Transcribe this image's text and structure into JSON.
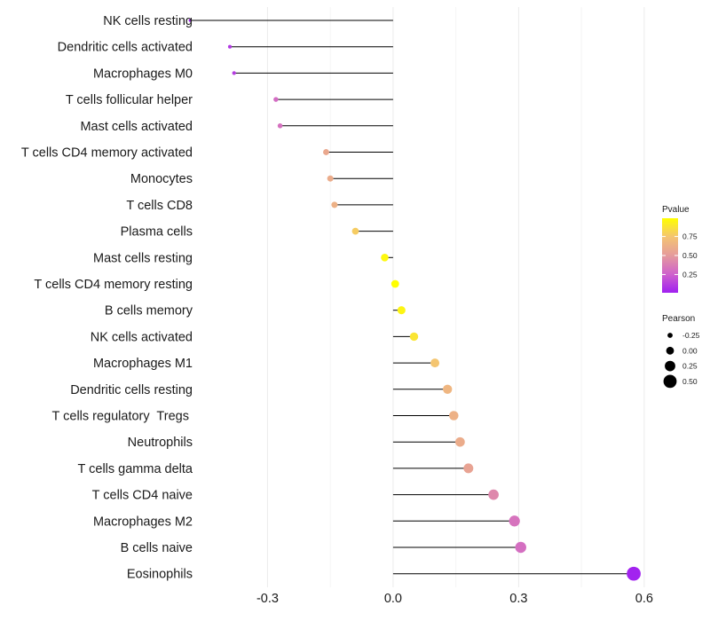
{
  "chart_data": {
    "type": "lollipop",
    "orientation": "horizontal",
    "title": "",
    "xlabel": "",
    "ylabel": "",
    "xlim": [
      -0.46,
      0.63
    ],
    "x_ticks": [
      {
        "value": -0.3,
        "label": "-0.3"
      },
      {
        "value": 0.0,
        "label": "0.0"
      },
      {
        "value": 0.3,
        "label": "0.3"
      },
      {
        "value": 0.6,
        "label": "0.6"
      }
    ],
    "baseline": 0,
    "grid": true,
    "points": [
      {
        "label": "NK cells resting",
        "pearson": -0.485,
        "pvalue": 0.02
      },
      {
        "label": "Dendritic cells activated",
        "pearson": -0.39,
        "pvalue": 0.1
      },
      {
        "label": "Macrophages M0",
        "pearson": -0.38,
        "pvalue": 0.12
      },
      {
        "label": "T cells follicular helper",
        "pearson": -0.28,
        "pvalue": 0.3
      },
      {
        "label": "Mast cells activated",
        "pearson": -0.27,
        "pvalue": 0.32
      },
      {
        "label": "T cells CD4 memory activated",
        "pearson": -0.16,
        "pvalue": 0.58
      },
      {
        "label": "Monocytes",
        "pearson": -0.15,
        "pvalue": 0.6
      },
      {
        "label": "T cells CD8",
        "pearson": -0.14,
        "pvalue": 0.63
      },
      {
        "label": "Plasma cells",
        "pearson": -0.09,
        "pvalue": 0.78
      },
      {
        "label": "Mast cells resting",
        "pearson": -0.02,
        "pvalue": 0.96
      },
      {
        "label": "T cells CD4 memory resting",
        "pearson": 0.005,
        "pvalue": 0.99
      },
      {
        "label": "B cells memory",
        "pearson": 0.02,
        "pvalue": 0.95
      },
      {
        "label": "NK cells activated",
        "pearson": 0.05,
        "pvalue": 0.88
      },
      {
        "label": "Macrophages M1",
        "pearson": 0.1,
        "pvalue": 0.75
      },
      {
        "label": "Dendritic cells resting",
        "pearson": 0.13,
        "pvalue": 0.66
      },
      {
        "label": "T cells regulatory  Tregs ",
        "pearson": 0.145,
        "pvalue": 0.63
      },
      {
        "label": "Neutrophils",
        "pearson": 0.16,
        "pvalue": 0.6
      },
      {
        "label": "T cells gamma delta",
        "pearson": 0.18,
        "pvalue": 0.55
      },
      {
        "label": "T cells CD4 naive",
        "pearson": 0.24,
        "pvalue": 0.42
      },
      {
        "label": "Macrophages M2",
        "pearson": 0.29,
        "pvalue": 0.33
      },
      {
        "label": "B cells naive",
        "pearson": 0.305,
        "pvalue": 0.31
      },
      {
        "label": "Eosinophils",
        "pearson": 0.575,
        "pvalue": 0.02
      }
    ],
    "legend_color": {
      "title": "Pvalue",
      "placement": "right",
      "range": [
        0.01,
        0.99
      ],
      "ticks": [
        {
          "value": 0.75,
          "label": "0.75"
        },
        {
          "value": 0.5,
          "label": "0.50"
        },
        {
          "value": 0.25,
          "label": "0.25"
        }
      ],
      "colors": [
        "#a020f0",
        "#cf62cc",
        "#e59b9c",
        "#f4c472",
        "#ffff00"
      ]
    },
    "legend_size": {
      "title": "Pearson",
      "placement": "right",
      "entries": [
        {
          "value": -0.25,
          "label": "-0.25"
        },
        {
          "value": 0.0,
          "label": "0.00"
        },
        {
          "value": 0.25,
          "label": "0.25"
        },
        {
          "value": 0.5,
          "label": "0.50"
        }
      ]
    }
  }
}
